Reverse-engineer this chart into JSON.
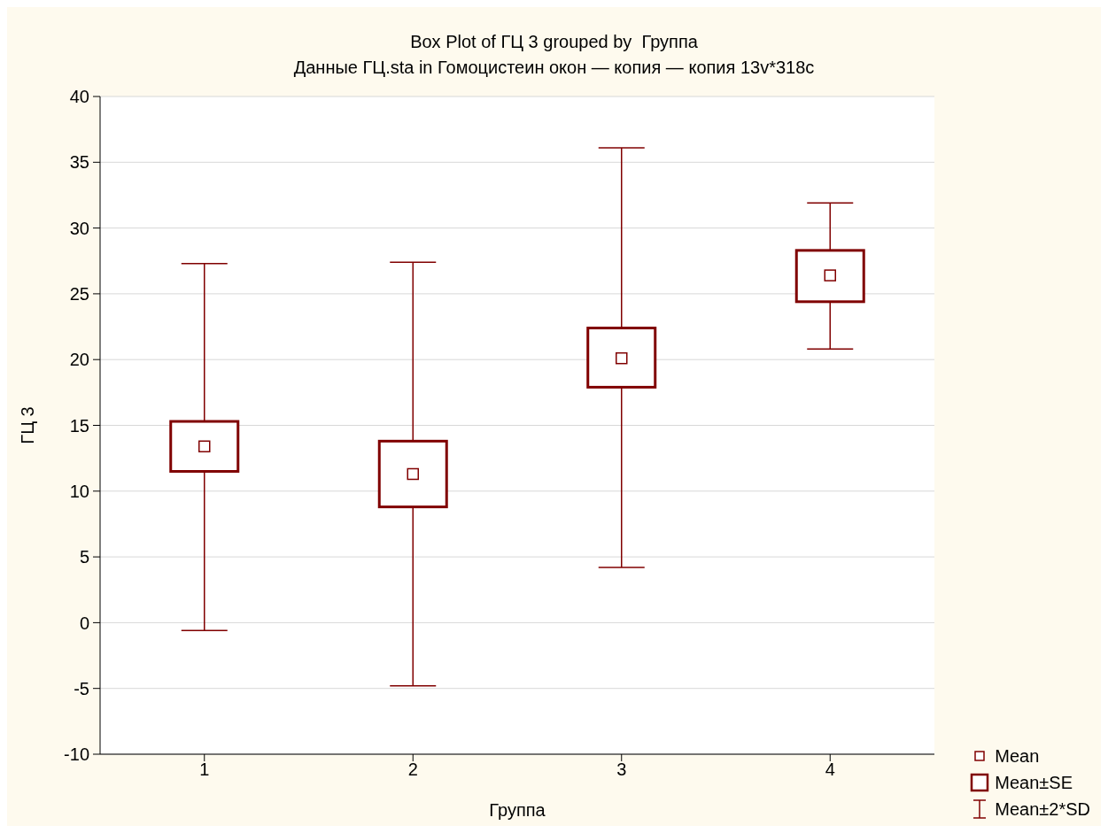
{
  "chart_data": {
    "type": "box",
    "title": "Box Plot of ГЦ 3 grouped by  Группа",
    "subtitle": "Данные ГЦ.sta in Гомоцистеин окон — копия — копия 13v*318c",
    "xlabel": "Группа",
    "ylabel": "ГЦ 3",
    "categories": [
      "1",
      "2",
      "3",
      "4"
    ],
    "boxes": [
      {
        "low": -0.6,
        "q1": 11.5,
        "median": 13.4,
        "q3": 15.3,
        "high": 27.3
      },
      {
        "low": -4.8,
        "q1": 8.8,
        "median": 11.3,
        "q3": 13.8,
        "high": 27.4
      },
      {
        "low": 4.2,
        "q1": 17.9,
        "median": 20.1,
        "q3": 22.4,
        "high": 36.1
      },
      {
        "low": 20.8,
        "q1": 24.4,
        "median": 26.4,
        "q3": 28.3,
        "high": 31.9
      }
    ],
    "color": "#800000",
    "ylim": [
      -10,
      40
    ],
    "yticks": [
      -10,
      -5,
      0,
      5,
      10,
      15,
      20,
      25,
      30,
      35,
      40
    ],
    "grid": "y",
    "annotations": [
      "Mean",
      "Mean±SE",
      "Mean±2*SD"
    ]
  }
}
